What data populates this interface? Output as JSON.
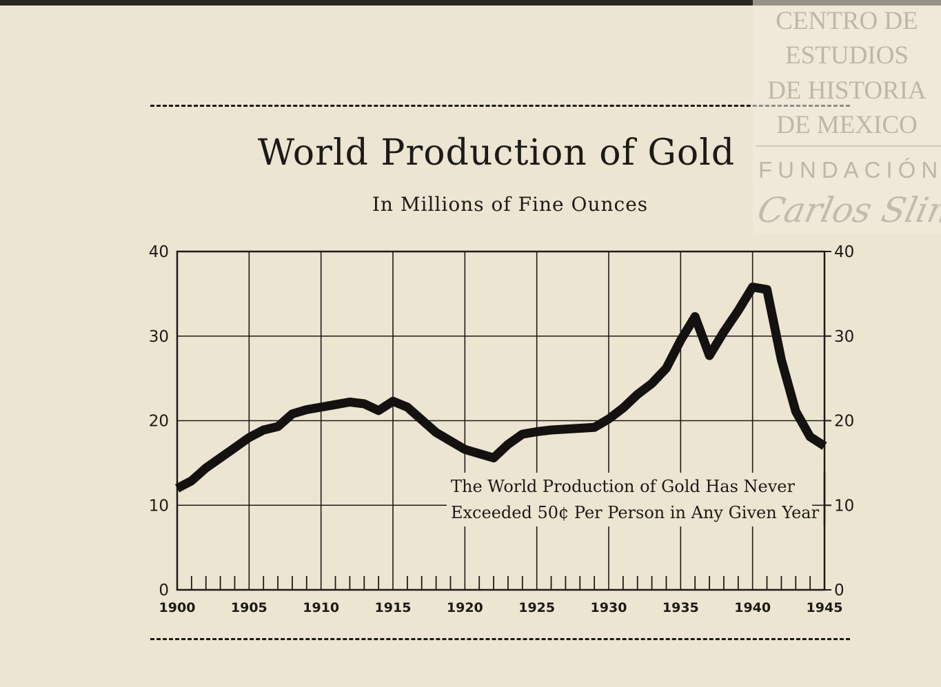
{
  "watermark": {
    "lines": [
      "CENTRO DE",
      "ESTUDIOS",
      "DE HISTORIA",
      "DE MEXICO"
    ],
    "fundacion": "FUNDACIÓN",
    "signature": "Carlos Slim"
  },
  "chart_data": {
    "type": "line",
    "title": "World Production of Gold",
    "subtitle": "In Millions of Fine Ounces",
    "xlabel": "",
    "ylabel": "",
    "xlim": [
      1900,
      1945
    ],
    "ylim": [
      0,
      40
    ],
    "x_ticks": [
      1900,
      1905,
      1910,
      1915,
      1920,
      1925,
      1930,
      1935,
      1940,
      1945
    ],
    "y_ticks": [
      0,
      10,
      20,
      30,
      40
    ],
    "grid": true,
    "legend": "none",
    "series": [
      {
        "x": [
          1900,
          1901,
          1902,
          1903,
          1904,
          1905,
          1906,
          1907,
          1908,
          1909,
          1910,
          1911,
          1912,
          1913,
          1914,
          1915,
          1916,
          1917,
          1918,
          1919,
          1920,
          1921,
          1922,
          1923,
          1924,
          1925,
          1926,
          1927,
          1928,
          1929,
          1930,
          1931,
          1932,
          1933,
          1934,
          1935,
          1936,
          1937,
          1938,
          1939,
          1940,
          1941,
          1942,
          1943,
          1944,
          1945
        ],
        "values": [
          12.0,
          12.9,
          14.4,
          15.6,
          16.8,
          18.0,
          18.9,
          19.3,
          20.8,
          21.3,
          21.6,
          21.9,
          22.2,
          22.0,
          21.2,
          22.3,
          21.6,
          20.1,
          18.6,
          17.6,
          16.6,
          16.1,
          15.6,
          17.2,
          18.4,
          18.7,
          18.9,
          19.0,
          19.1,
          19.2,
          20.2,
          21.5,
          23.1,
          24.4,
          26.2,
          29.5,
          32.3,
          27.7,
          30.5,
          33.0,
          35.8,
          35.5,
          27.2,
          21.1,
          18.1,
          17.0
        ]
      }
    ],
    "annotation": [
      "The World Production of Gold Has Never",
      "Exceeded 50¢ Per Person in Any Given Year"
    ]
  }
}
